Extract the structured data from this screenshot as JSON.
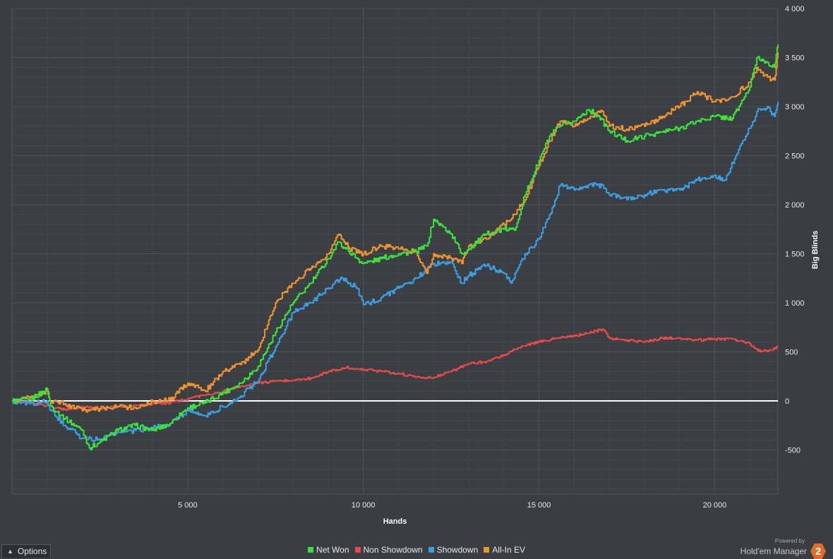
{
  "options": {
    "label": "Options"
  },
  "branding": {
    "powered_by": "Powered by",
    "product": "Hold'em Manager",
    "logo_text": "2",
    "logo_color": "#e06b2a"
  },
  "colors": {
    "background": "#3a3d42",
    "plot_bg": "#3b3e43",
    "grid": "#4f5257",
    "zero_line": "#ffffff"
  },
  "chart_data": {
    "type": "line",
    "xlabel": "Hands",
    "ylabel": "Big Blinds",
    "xlim": [
      0,
      21800
    ],
    "ylim": [
      -950,
      4000
    ],
    "x_ticks": [
      5000,
      10000,
      15000,
      20000
    ],
    "x_tick_labels": [
      "5 000",
      "10 000",
      "15 000",
      "20 000"
    ],
    "y_ticks": [
      -500,
      0,
      500,
      1000,
      1500,
      2000,
      2500,
      3000,
      3500,
      4000
    ],
    "y_tick_labels": [
      "-500",
      "0",
      "500",
      "1 000",
      "1 500",
      "2 000",
      "2 500",
      "3 000",
      "3 500",
      "4 000"
    ],
    "grid": true,
    "legend_position": "bottom",
    "series": [
      {
        "name": "Net Won",
        "color": "#3ae33a",
        "points": [
          [
            0,
            0
          ],
          [
            500,
            10
          ],
          [
            1000,
            120
          ],
          [
            1100,
            -50
          ],
          [
            1500,
            -180
          ],
          [
            2000,
            -300
          ],
          [
            2200,
            -480
          ],
          [
            2500,
            -420
          ],
          [
            3000,
            -300
          ],
          [
            3500,
            -250
          ],
          [
            4000,
            -300
          ],
          [
            4500,
            -230
          ],
          [
            5000,
            -70
          ],
          [
            5500,
            -20
          ],
          [
            6000,
            80
          ],
          [
            6500,
            180
          ],
          [
            7000,
            350
          ],
          [
            7500,
            700
          ],
          [
            8000,
            1000
          ],
          [
            8500,
            1200
          ],
          [
            9000,
            1450
          ],
          [
            9300,
            1620
          ],
          [
            9500,
            1550
          ],
          [
            10000,
            1400
          ],
          [
            10500,
            1450
          ],
          [
            11000,
            1500
          ],
          [
            11500,
            1520
          ],
          [
            11800,
            1580
          ],
          [
            12000,
            1850
          ],
          [
            12500,
            1700
          ],
          [
            12800,
            1500
          ],
          [
            13000,
            1550
          ],
          [
            13500,
            1700
          ],
          [
            14000,
            1750
          ],
          [
            14300,
            1740
          ],
          [
            14600,
            2100
          ],
          [
            15000,
            2450
          ],
          [
            15300,
            2700
          ],
          [
            15600,
            2800
          ],
          [
            16000,
            2850
          ],
          [
            16400,
            2970
          ],
          [
            16700,
            2900
          ],
          [
            17000,
            2750
          ],
          [
            17500,
            2650
          ],
          [
            18000,
            2700
          ],
          [
            18500,
            2740
          ],
          [
            19000,
            2780
          ],
          [
            19500,
            2850
          ],
          [
            20000,
            2900
          ],
          [
            20500,
            2880
          ],
          [
            21000,
            3200
          ],
          [
            21200,
            3500
          ],
          [
            21500,
            3450
          ],
          [
            21700,
            3400
          ],
          [
            21800,
            3630
          ]
        ]
      },
      {
        "name": "Non Showdown",
        "color": "#e84a4a",
        "points": [
          [
            0,
            0
          ],
          [
            500,
            -20
          ],
          [
            1000,
            -50
          ],
          [
            1500,
            -90
          ],
          [
            2000,
            -60
          ],
          [
            2500,
            -80
          ],
          [
            3000,
            -60
          ],
          [
            3500,
            -50
          ],
          [
            4000,
            -30
          ],
          [
            4500,
            -20
          ],
          [
            5000,
            20
          ],
          [
            5500,
            60
          ],
          [
            6000,
            100
          ],
          [
            6500,
            150
          ],
          [
            7000,
            180
          ],
          [
            7500,
            200
          ],
          [
            8000,
            210
          ],
          [
            8500,
            230
          ],
          [
            9000,
            300
          ],
          [
            9500,
            340
          ],
          [
            10000,
            320
          ],
          [
            10500,
            300
          ],
          [
            11000,
            280
          ],
          [
            11500,
            240
          ],
          [
            12000,
            240
          ],
          [
            12500,
            300
          ],
          [
            13000,
            380
          ],
          [
            13500,
            400
          ],
          [
            14000,
            470
          ],
          [
            14500,
            560
          ],
          [
            15000,
            600
          ],
          [
            15500,
            640
          ],
          [
            16000,
            660
          ],
          [
            16500,
            700
          ],
          [
            16800,
            730
          ],
          [
            17000,
            640
          ],
          [
            17500,
            620
          ],
          [
            18000,
            600
          ],
          [
            18500,
            640
          ],
          [
            19000,
            640
          ],
          [
            19500,
            620
          ],
          [
            20000,
            630
          ],
          [
            20500,
            630
          ],
          [
            21000,
            580
          ],
          [
            21300,
            500
          ],
          [
            21600,
            520
          ],
          [
            21800,
            550
          ]
        ]
      },
      {
        "name": "Showdown",
        "color": "#3a9ee0",
        "points": [
          [
            0,
            0
          ],
          [
            500,
            -30
          ],
          [
            1000,
            0
          ],
          [
            1100,
            -100
          ],
          [
            1500,
            -250
          ],
          [
            2000,
            -380
          ],
          [
            2500,
            -400
          ],
          [
            3000,
            -320
          ],
          [
            3500,
            -300
          ],
          [
            4000,
            -280
          ],
          [
            4500,
            -230
          ],
          [
            5000,
            -100
          ],
          [
            5500,
            -150
          ],
          [
            6000,
            -60
          ],
          [
            6500,
            50
          ],
          [
            7000,
            200
          ],
          [
            7500,
            550
          ],
          [
            8000,
            900
          ],
          [
            8500,
            1000
          ],
          [
            9000,
            1150
          ],
          [
            9400,
            1250
          ],
          [
            9800,
            1150
          ],
          [
            10000,
            980
          ],
          [
            10500,
            1050
          ],
          [
            11000,
            1150
          ],
          [
            11500,
            1250
          ],
          [
            12000,
            1400
          ],
          [
            12500,
            1420
          ],
          [
            12800,
            1200
          ],
          [
            13000,
            1280
          ],
          [
            13500,
            1380
          ],
          [
            14000,
            1300
          ],
          [
            14200,
            1200
          ],
          [
            14600,
            1500
          ],
          [
            15000,
            1650
          ],
          [
            15300,
            1900
          ],
          [
            15600,
            2200
          ],
          [
            16000,
            2150
          ],
          [
            16400,
            2200
          ],
          [
            16800,
            2200
          ],
          [
            17000,
            2100
          ],
          [
            17500,
            2050
          ],
          [
            18000,
            2100
          ],
          [
            18500,
            2150
          ],
          [
            19000,
            2150
          ],
          [
            19500,
            2250
          ],
          [
            20000,
            2300
          ],
          [
            20300,
            2250
          ],
          [
            20600,
            2500
          ],
          [
            21000,
            2780
          ],
          [
            21200,
            2950
          ],
          [
            21500,
            3000
          ],
          [
            21700,
            2900
          ],
          [
            21800,
            3050
          ]
        ]
      },
      {
        "name": "All-In EV",
        "color": "#f0922e",
        "points": [
          [
            0,
            0
          ],
          [
            500,
            30
          ],
          [
            1000,
            100
          ],
          [
            1100,
            -10
          ],
          [
            1500,
            -30
          ],
          [
            2000,
            -100
          ],
          [
            2500,
            -80
          ],
          [
            3000,
            -60
          ],
          [
            3500,
            -70
          ],
          [
            4000,
            -10
          ],
          [
            4500,
            10
          ],
          [
            5000,
            180
          ],
          [
            5500,
            100
          ],
          [
            6000,
            300
          ],
          [
            6500,
            370
          ],
          [
            7000,
            520
          ],
          [
            7500,
            1000
          ],
          [
            8000,
            1200
          ],
          [
            8500,
            1350
          ],
          [
            9000,
            1500
          ],
          [
            9300,
            1700
          ],
          [
            9600,
            1550
          ],
          [
            10000,
            1500
          ],
          [
            10500,
            1580
          ],
          [
            11000,
            1550
          ],
          [
            11500,
            1520
          ],
          [
            11800,
            1300
          ],
          [
            12000,
            1500
          ],
          [
            12500,
            1450
          ],
          [
            12800,
            1400
          ],
          [
            13000,
            1580
          ],
          [
            13500,
            1650
          ],
          [
            14000,
            1800
          ],
          [
            14300,
            1900
          ],
          [
            14600,
            2050
          ],
          [
            15000,
            2400
          ],
          [
            15300,
            2650
          ],
          [
            15600,
            2850
          ],
          [
            16000,
            2800
          ],
          [
            16500,
            2900
          ],
          [
            16800,
            2950
          ],
          [
            17000,
            2800
          ],
          [
            17500,
            2770
          ],
          [
            18000,
            2800
          ],
          [
            18500,
            2900
          ],
          [
            19000,
            3000
          ],
          [
            19500,
            3150
          ],
          [
            20000,
            3050
          ],
          [
            20500,
            3100
          ],
          [
            21000,
            3250
          ],
          [
            21200,
            3400
          ],
          [
            21500,
            3300
          ],
          [
            21700,
            3270
          ],
          [
            21800,
            3550
          ]
        ]
      }
    ]
  }
}
